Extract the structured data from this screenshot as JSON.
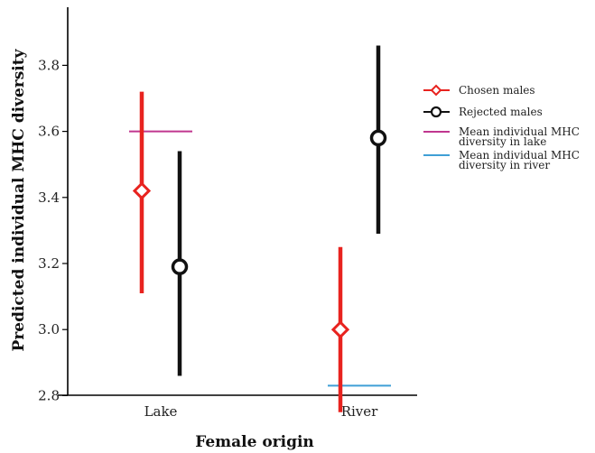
{
  "chart_data": {
    "type": "scatter",
    "xlabel": "Female origin",
    "ylabel": "Predicted individual MHC diversity",
    "categories": [
      "Lake",
      "River"
    ],
    "ylim": [
      2.71,
      3.88
    ],
    "yticks": [
      "2.8",
      "3.0",
      "3.2",
      "3.4",
      "3.6",
      "3.8"
    ],
    "grid": false,
    "legend_position": "right",
    "series": [
      {
        "name": "Chosen males",
        "color": "#e8231f",
        "marker": "diamond",
        "points": [
          {
            "category": "Lake",
            "y": 3.42,
            "low": 3.11,
            "high": 3.72
          },
          {
            "category": "River",
            "y": 3.0,
            "low": 2.75,
            "high": 3.25
          }
        ]
      },
      {
        "name": "Rejected males",
        "color": "#111111",
        "marker": "circle",
        "points": [
          {
            "category": "Lake",
            "y": 3.19,
            "low": 2.86,
            "high": 3.54
          },
          {
            "category": "River",
            "y": 3.58,
            "low": 3.29,
            "high": 3.86
          }
        ]
      }
    ],
    "reference_lines": [
      {
        "name_line1": "Mean individual MHC",
        "name_line2": "diversity in lake",
        "category": "Lake",
        "y": 3.6,
        "color": "#c0368f"
      },
      {
        "name_line1": "Mean individual MHC",
        "name_line2": "diversity in river",
        "category": "River",
        "y": 2.83,
        "color": "#3f9fd6"
      }
    ]
  }
}
